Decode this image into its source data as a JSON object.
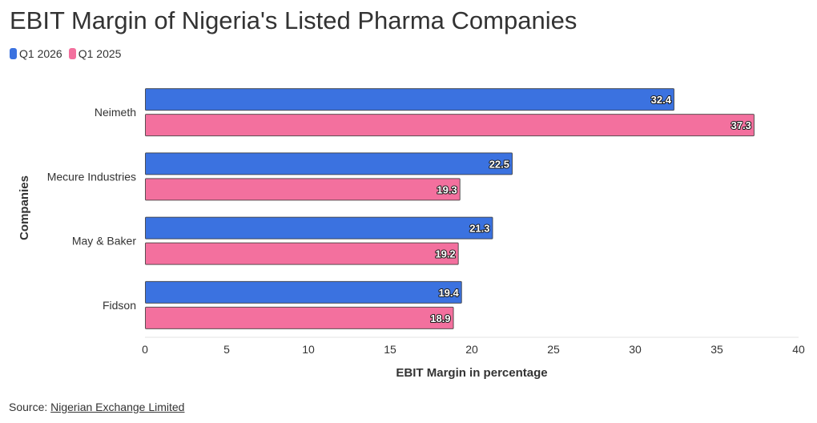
{
  "title": "EBIT Margin of Nigeria's Listed Pharma Companies",
  "legend": {
    "q1_2026": "Q1 2026",
    "q1_2025": "Q1 2025"
  },
  "colors": {
    "q1_2026": "#3b72e0",
    "q1_2025": "#f3709e"
  },
  "source": {
    "prefix": "Source: ",
    "link_text": "Nigerian Exchange Limited"
  },
  "chart_data": {
    "type": "bar",
    "orientation": "horizontal",
    "categories": [
      "Neimeth",
      "Mecure Industries",
      "May & Baker",
      "Fidson"
    ],
    "series": [
      {
        "name": "Q1 2026",
        "values": [
          32.4,
          22.5,
          21.3,
          19.4
        ]
      },
      {
        "name": "Q1 2025",
        "values": [
          37.3,
          19.3,
          19.2,
          18.9
        ]
      }
    ],
    "xlabel": "EBIT Margin in percentage",
    "ylabel": "Companies",
    "xlim": [
      0,
      40
    ],
    "xticks": [
      0,
      5,
      10,
      15,
      20,
      25,
      30,
      35,
      40
    ],
    "legend_position": "top-left",
    "grid": false,
    "data_labels": true
  }
}
